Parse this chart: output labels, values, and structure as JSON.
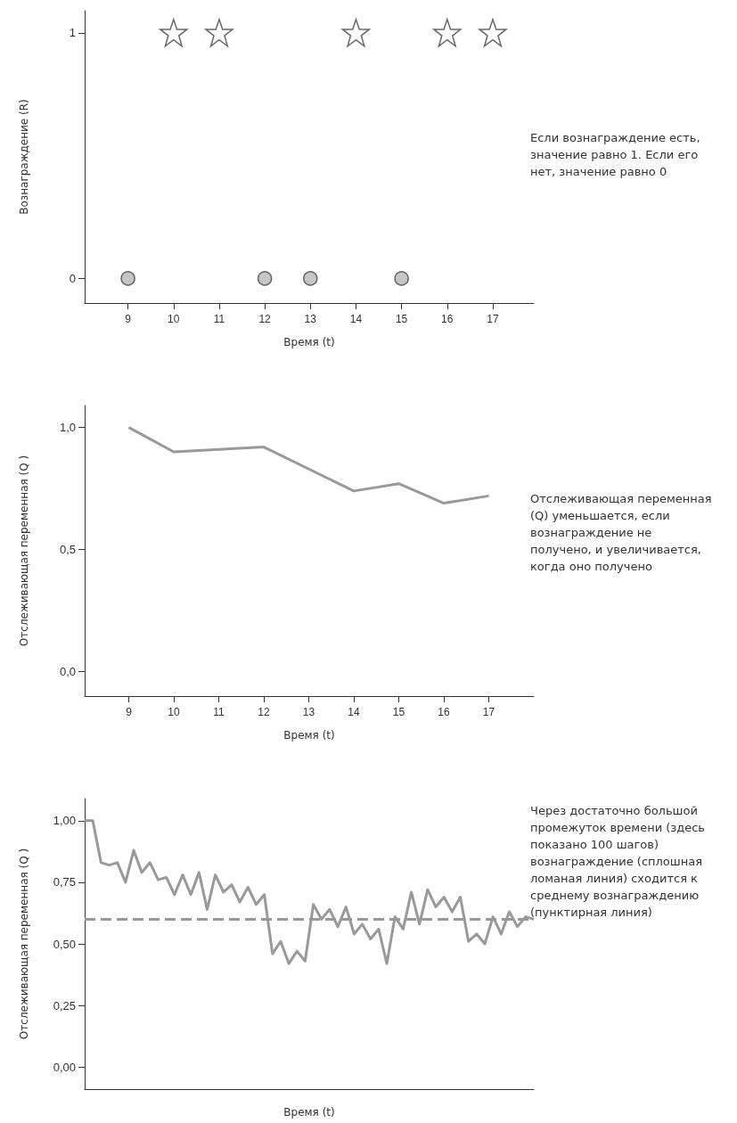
{
  "chart_data": [
    {
      "type": "scatter",
      "xlabel": "Время (t)",
      "ylabel": "Вознаграждение (R)",
      "series": [
        {
          "marker": "star",
          "color": "#ffffff",
          "x": [
            10,
            11,
            14,
            16,
            17
          ],
          "values": [
            1,
            1,
            1,
            1,
            1
          ]
        },
        {
          "marker": "circle",
          "color": "#b8b8b8",
          "x": [
            9,
            12,
            13,
            15
          ],
          "values": [
            0,
            0,
            0,
            0
          ]
        }
      ],
      "xlim": [
        8.05,
        17.9
      ],
      "xticks": [
        9,
        10,
        11,
        12,
        13,
        14,
        15,
        16,
        17
      ],
      "ylim": [
        -0.1,
        1.09
      ],
      "yticks": [
        0,
        1
      ],
      "annotations": [
        "Если вознаграждение есть, значение равно 1. Если его нет, значение равно 0"
      ]
    },
    {
      "type": "line",
      "xlabel": "Время (t)",
      "ylabel": "Отслеживающая переменная (Q )",
      "color": "#999999",
      "x": [
        9,
        10,
        11,
        12,
        13,
        14,
        15,
        16,
        17
      ],
      "values": [
        1.0,
        0.9,
        0.91,
        0.92,
        0.83,
        0.74,
        0.77,
        0.69,
        0.72
      ],
      "xlim": [
        8.02,
        18
      ],
      "xticks": [
        9,
        10,
        11,
        12,
        13,
        14,
        15,
        16,
        17
      ],
      "ylim": [
        -0.1,
        1.09
      ],
      "yticks": [
        {
          "value": 0,
          "label": "0,0"
        },
        {
          "value": 0.5,
          "label": "0,5"
        },
        {
          "value": 1,
          "label": "1,0"
        }
      ],
      "marker": "none",
      "annotations": [
        "Отслеживающая переменная (Q) уменьшается, если вознаграждение не получено, и увеличивается, когда оно получено"
      ]
    },
    {
      "type": "line",
      "xlabel": "Время (t)",
      "ylabel": "Отслеживающая переменная (Q )",
      "color": "#999999",
      "categories": [
        null,
        null,
        null,
        null,
        null,
        null,
        null,
        null,
        null,
        null,
        null,
        null,
        null,
        null,
        null,
        null,
        null,
        null,
        null,
        null,
        null,
        null,
        null,
        null,
        null,
        null,
        null,
        null,
        null,
        null,
        null,
        null,
        null,
        null,
        null,
        null,
        null,
        null,
        null,
        null,
        null,
        null,
        null,
        null,
        null,
        null,
        null,
        null,
        null,
        null,
        null,
        null,
        null,
        null,
        null,
        null
      ],
      "values": [
        1.0,
        1.0,
        0.83,
        0.82,
        0.83,
        0.75,
        0.88,
        0.79,
        0.83,
        0.76,
        0.77,
        0.7,
        0.78,
        0.7,
        0.79,
        0.64,
        0.78,
        0.71,
        0.74,
        0.67,
        0.73,
        0.66,
        0.7,
        0.46,
        0.51,
        0.42,
        0.47,
        0.43,
        0.66,
        0.6,
        0.64,
        0.57,
        0.65,
        0.54,
        0.58,
        0.52,
        0.56,
        0.42,
        0.61,
        0.56,
        0.71,
        0.58,
        0.72,
        0.65,
        0.69,
        0.63,
        0.69,
        0.51,
        0.54,
        0.5,
        0.61,
        0.54,
        0.63,
        0.57,
        0.61,
        0.6
      ],
      "ylim": [
        -0.09,
        1.09
      ],
      "yticks": [
        {
          "value": 0,
          "label": "0,00"
        },
        {
          "value": 0.25,
          "label": "0,25"
        },
        {
          "value": 0.5,
          "label": "0,50"
        },
        {
          "value": 0.75,
          "label": "0,75"
        },
        {
          "value": 1,
          "label": "1,00"
        }
      ],
      "tick_labels": "y",
      "marker": "none",
      "ref_lines": [
        {
          "axis": "y",
          "value": 0.6,
          "color": "#999999",
          "line_style": "dashed"
        }
      ],
      "annotations": [
        "Через достаточно большой промежуток времени (здесь показано 100 шагов) вознаграждение (сплошная ломаная линия) сходится к среднему вознаграждению (пунктирная линия)"
      ]
    }
  ]
}
